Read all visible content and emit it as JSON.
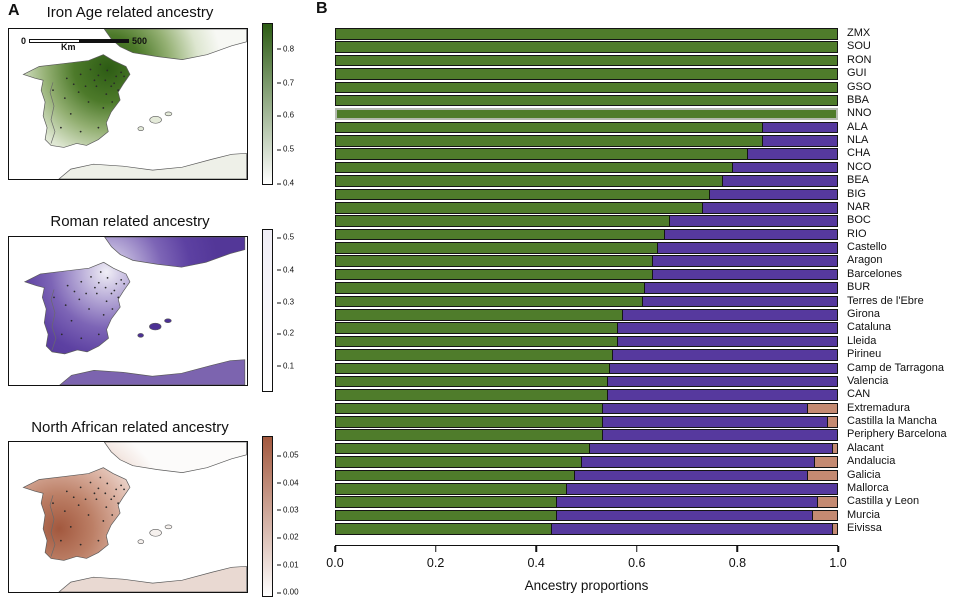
{
  "panel_a": {
    "label": "A",
    "scalebar": {
      "zero": "0",
      "max": "500",
      "unit": "Km"
    },
    "maps": [
      {
        "title": "Iron Age related ancestry",
        "high_color": "#2d5c14",
        "colorbar_ticks": [
          "0.8",
          "0.7",
          "0.6",
          "0.5",
          "0.4"
        ]
      },
      {
        "title": "Roman related ancestry",
        "high_color": "#533798",
        "colorbar_ticks": [
          "0.5",
          "0.4",
          "0.3",
          "0.2",
          "0.1"
        ]
      },
      {
        "title": "North African related ancestry",
        "high_color": "#a2583e",
        "colorbar_ticks": [
          "0.05",
          "0.04",
          "0.03",
          "0.02",
          "0.01",
          "0.00"
        ]
      }
    ]
  },
  "panel_b": {
    "label": "B",
    "x_ticks": [
      "0.0",
      "0.2",
      "0.4",
      "0.6",
      "0.8",
      "1.0"
    ],
    "xlabel": "Ancestry proportions"
  },
  "chart_data": {
    "type": "bar",
    "orientation": "horizontal",
    "stacked": true,
    "xlabel": "Ancestry proportions",
    "xlim": [
      0,
      1
    ],
    "grid": false,
    "legend": "none",
    "highlighted_category": "NNO",
    "categories": [
      "ZMX",
      "SOU",
      "RON",
      "GUI",
      "GSO",
      "BBA",
      "NNO",
      "ALA",
      "NLA",
      "CHA",
      "NCO",
      "BEA",
      "BIG",
      "NAR",
      "BOC",
      "RIO",
      "Castello",
      "Aragon",
      "Barcelones",
      "BUR",
      "Terres de l'Ebre",
      "Girona",
      "Cataluna",
      "Lleida",
      "Pirineu",
      "Camp de Tarragona",
      "Valencia",
      "CAN",
      "Extremadura",
      "Castilla la Mancha",
      "Periphery Barcelona",
      "Alacant",
      "Andalucia",
      "Galicia",
      "Mallorca",
      "Castilla y Leon",
      "Murcia",
      "Eivissa"
    ],
    "series": [
      {
        "name": "Iron Age related",
        "color": "#4f7c2b",
        "values": [
          1.0,
          1.0,
          1.0,
          1.0,
          1.0,
          1.0,
          1.0,
          0.85,
          0.85,
          0.82,
          0.79,
          0.77,
          0.745,
          0.73,
          0.665,
          0.655,
          0.64,
          0.63,
          0.63,
          0.615,
          0.61,
          0.57,
          0.56,
          0.56,
          0.55,
          0.545,
          0.54,
          0.54,
          0.53,
          0.53,
          0.53,
          0.505,
          0.49,
          0.475,
          0.46,
          0.44,
          0.44,
          0.43
        ]
      },
      {
        "name": "Roman related",
        "color": "#56399e",
        "values": [
          0,
          0,
          0,
          0,
          0,
          0,
          0,
          0.15,
          0.15,
          0.18,
          0.21,
          0.23,
          0.255,
          0.27,
          0.335,
          0.345,
          0.36,
          0.37,
          0.37,
          0.385,
          0.39,
          0.43,
          0.44,
          0.44,
          0.45,
          0.455,
          0.46,
          0.46,
          0.41,
          0.45,
          0.47,
          0.485,
          0.465,
          0.465,
          0.54,
          0.52,
          0.51,
          0.56
        ]
      },
      {
        "name": "North African related",
        "color": "#c48a72",
        "values": [
          0,
          0,
          0,
          0,
          0,
          0,
          0,
          0,
          0,
          0,
          0,
          0,
          0,
          0,
          0,
          0,
          0,
          0,
          0,
          0,
          0,
          0,
          0,
          0,
          0,
          0,
          0,
          0,
          0.06,
          0.02,
          0,
          0.01,
          0.045,
          0.06,
          0,
          0.04,
          0.05,
          0.01
        ]
      }
    ]
  }
}
